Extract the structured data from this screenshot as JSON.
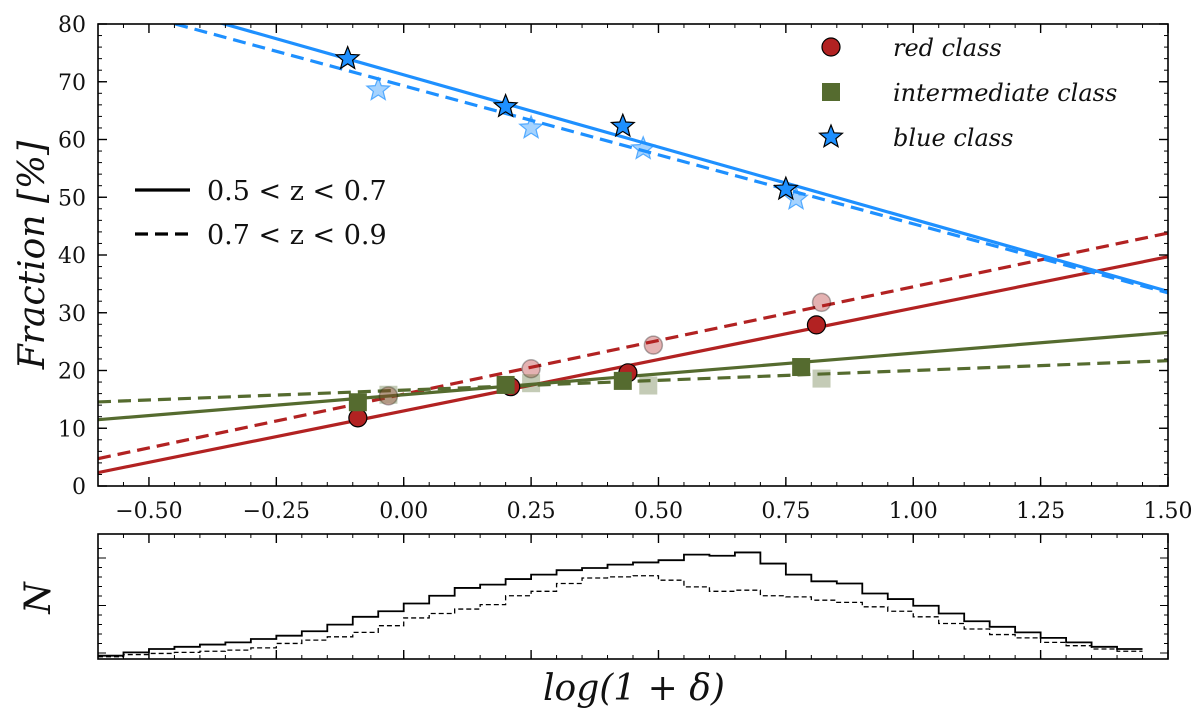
{
  "chart_data": [
    {
      "type": "scatter",
      "title": "",
      "xlabel": "",
      "ylabel": "Fraction [%]",
      "xlim": [
        -0.6,
        1.5
      ],
      "ylim": [
        0,
        80
      ],
      "xticks": [
        -0.5,
        -0.25,
        0.0,
        0.25,
        0.5,
        0.75,
        1.0,
        1.25,
        1.5
      ],
      "xtick_labels": [
        "−0.50",
        "−0.25",
        "0.00",
        "0.25",
        "0.50",
        "0.75",
        "1.00",
        "1.25",
        "1.50"
      ],
      "yticks": [
        0,
        10,
        20,
        30,
        40,
        50,
        60,
        70,
        80
      ],
      "ytick_labels": [
        "0",
        "10",
        "20",
        "30",
        "40",
        "50",
        "60",
        "70",
        "80"
      ],
      "legend_classes": [
        {
          "label": "red class",
          "marker": "circle",
          "color": "#b22222"
        },
        {
          "label": "intermediate class",
          "marker": "square",
          "color": "#556b2f"
        },
        {
          "label": "blue class",
          "marker": "star",
          "color": "#1e90ff"
        }
      ],
      "legend_z": [
        {
          "label": "0.5 < z < 0.7",
          "style": "solid"
        },
        {
          "label": "0.7 < z < 0.9",
          "style": "dashed"
        }
      ],
      "series": [
        {
          "name": "red class (0.5 < z < 0.7)",
          "class": "red",
          "z": "low",
          "color": "#b22222",
          "marker": "circle",
          "x": [
            -0.09,
            0.21,
            0.44,
            0.81
          ],
          "y": [
            11.8,
            17.2,
            19.6,
            27.9
          ],
          "fit": {
            "intercept": 13.0,
            "slope": 17.8
          }
        },
        {
          "name": "red class (0.7 < z < 0.9)",
          "class": "red",
          "z": "high",
          "color": "#b22222",
          "marker": "circle",
          "x": [
            -0.03,
            0.25,
            0.49,
            0.82
          ],
          "y": [
            15.6,
            20.3,
            24.4,
            31.8
          ],
          "fit": {
            "intercept": 15.9,
            "slope": 18.6
          }
        },
        {
          "name": "intermediate class (0.5 < z < 0.7)",
          "class": "intermediate",
          "z": "low",
          "color": "#556b2f",
          "marker": "square",
          "x": [
            -0.09,
            0.2,
            0.43,
            0.78
          ],
          "y": [
            14.5,
            17.5,
            18.2,
            20.6
          ],
          "fit": {
            "intercept": 15.8,
            "slope": 7.2
          }
        },
        {
          "name": "intermediate class (0.7 < z < 0.9)",
          "class": "intermediate",
          "z": "high",
          "color": "#556b2f",
          "marker": "square",
          "x": [
            -0.03,
            0.25,
            0.48,
            0.82
          ],
          "y": [
            15.8,
            17.8,
            17.4,
            18.6
          ],
          "fit": {
            "intercept": 16.6,
            "slope": 3.4
          }
        },
        {
          "name": "blue class (0.5 < z < 0.7)",
          "class": "blue",
          "z": "low",
          "color": "#1e90ff",
          "marker": "star",
          "x": [
            -0.11,
            0.2,
            0.43,
            0.75
          ],
          "y": [
            74.0,
            65.7,
            62.3,
            51.4
          ],
          "fit": {
            "intercept": 71.2,
            "slope": -25.0
          }
        },
        {
          "name": "blue class (0.7 < z < 0.9)",
          "class": "blue",
          "z": "high",
          "color": "#1e90ff",
          "marker": "star",
          "x": [
            -0.05,
            0.25,
            0.47,
            0.77
          ],
          "y": [
            68.6,
            62.0,
            58.4,
            49.7
          ],
          "fit": {
            "intercept": 69.3,
            "slope": -23.9
          }
        }
      ]
    },
    {
      "type": "histogram",
      "xlabel": "log(1 + δ)",
      "ylabel": "N",
      "xlim": [
        -0.6,
        1.5
      ],
      "ylim": [
        0,
        1
      ],
      "bin_width": 0.05,
      "bin_start": -0.6,
      "series": [
        {
          "name": "0.5 < z < 0.7",
          "style": "solid",
          "values": [
            0.03,
            0.06,
            0.09,
            0.11,
            0.13,
            0.15,
            0.18,
            0.21,
            0.25,
            0.31,
            0.38,
            0.43,
            0.5,
            0.57,
            0.64,
            0.67,
            0.72,
            0.76,
            0.8,
            0.82,
            0.85,
            0.87,
            0.89,
            0.94,
            0.93,
            0.96,
            0.86,
            0.76,
            0.7,
            0.68,
            0.59,
            0.54,
            0.48,
            0.41,
            0.34,
            0.29,
            0.24,
            0.19,
            0.15,
            0.11,
            0.09
          ]
        },
        {
          "name": "0.7 < z < 0.9",
          "style": "dashed",
          "values": [
            0.02,
            0.04,
            0.05,
            0.06,
            0.07,
            0.08,
            0.1,
            0.14,
            0.17,
            0.2,
            0.24,
            0.3,
            0.37,
            0.41,
            0.45,
            0.49,
            0.57,
            0.61,
            0.68,
            0.73,
            0.74,
            0.75,
            0.71,
            0.65,
            0.61,
            0.62,
            0.57,
            0.56,
            0.53,
            0.51,
            0.47,
            0.43,
            0.38,
            0.32,
            0.27,
            0.22,
            0.19,
            0.15,
            0.12,
            0.09,
            0.07
          ]
        }
      ]
    }
  ]
}
